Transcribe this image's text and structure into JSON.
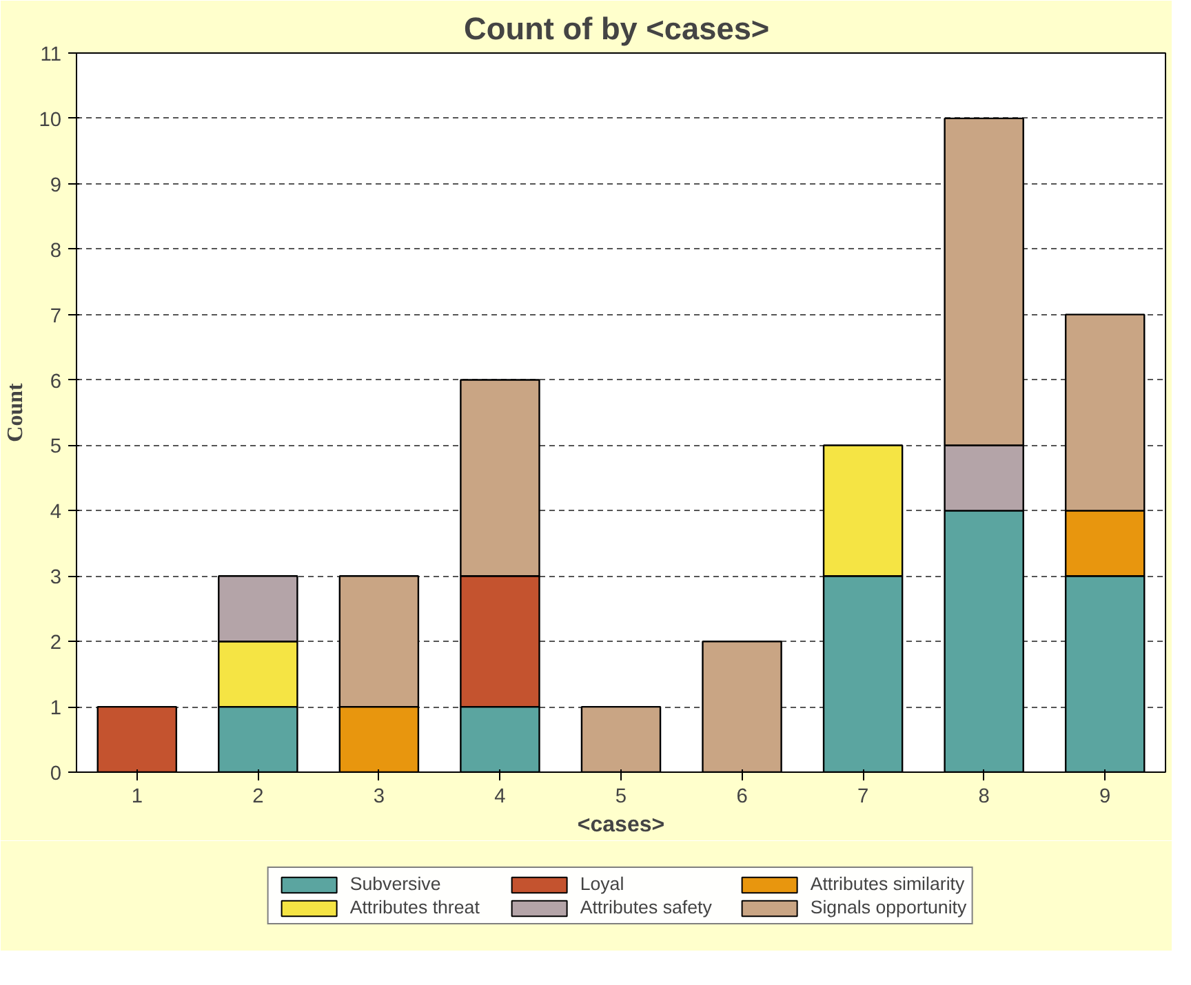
{
  "chart_data": {
    "type": "bar",
    "title": "Count of  by <cases>",
    "xlabel": "<cases>",
    "ylabel": "Count",
    "categories": [
      "1",
      "2",
      "3",
      "4",
      "5",
      "6",
      "7",
      "8",
      "9"
    ],
    "stacked": true,
    "ylim": [
      0,
      11
    ],
    "yticks": [
      0,
      1,
      2,
      3,
      4,
      5,
      6,
      7,
      8,
      9,
      10,
      11
    ],
    "grid": "y",
    "legend": "bottom",
    "series": [
      {
        "name": "Subversive",
        "color": "#5ba5a0",
        "values": [
          0,
          1,
          0,
          1,
          0,
          0,
          3,
          4,
          3
        ]
      },
      {
        "name": "Loyal",
        "color": "#c4532f",
        "values": [
          1,
          0,
          0,
          2,
          0,
          0,
          0,
          0,
          0
        ]
      },
      {
        "name": "Attributes similarity",
        "color": "#e8960e",
        "values": [
          0,
          0,
          1,
          0,
          0,
          0,
          0,
          0,
          1
        ]
      },
      {
        "name": "Attributes threat",
        "color": "#f5e444",
        "values": [
          0,
          1,
          0,
          0,
          0,
          0,
          2,
          0,
          0
        ]
      },
      {
        "name": "Attributes safety",
        "color": "#b4a4a8",
        "values": [
          0,
          1,
          0,
          0,
          0,
          0,
          0,
          1,
          0
        ]
      },
      {
        "name": "Signals opportunity",
        "color": "#c9a584",
        "values": [
          0,
          0,
          2,
          3,
          1,
          2,
          0,
          5,
          3
        ]
      }
    ]
  }
}
